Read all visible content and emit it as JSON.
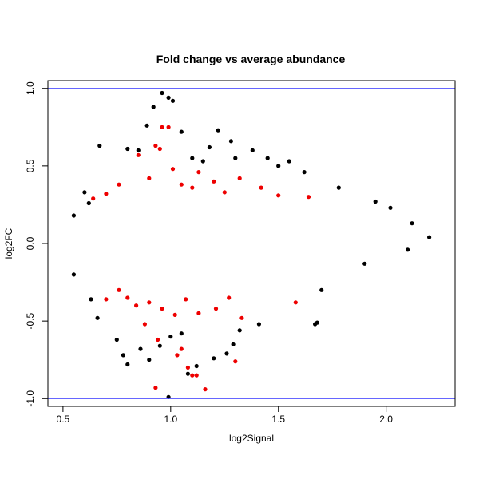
{
  "chart_data": {
    "type": "scatter",
    "title": "Fold change vs average abundance",
    "xlabel": "log2Signal",
    "ylabel": "log2FC",
    "xlim": [
      0.43,
      2.32
    ],
    "ylim": [
      -1.05,
      1.05
    ],
    "x_ticks": [
      0.5,
      1.0,
      1.5,
      2.0
    ],
    "x_tick_labels": [
      "0.5",
      "1.0",
      "1.5",
      "2.0"
    ],
    "y_ticks": [
      -1.0,
      -0.5,
      0.0,
      0.5,
      1.0
    ],
    "y_tick_labels": [
      "-1.0",
      "-0.5",
      "0.0",
      "0.5",
      "1.0"
    ],
    "grid": false,
    "reference_lines": [
      {
        "axis": "y",
        "value": 1.0,
        "color": "#3333ff"
      },
      {
        "axis": "y",
        "value": -1.0,
        "color": "#3333ff"
      }
    ],
    "series": [
      {
        "color": "#000000",
        "points": [
          [
            0.96,
            0.97
          ],
          [
            0.99,
            0.94
          ],
          [
            1.01,
            0.92
          ],
          [
            0.92,
            0.88
          ],
          [
            0.89,
            0.76
          ],
          [
            0.67,
            0.63
          ],
          [
            1.05,
            0.72
          ],
          [
            1.22,
            0.73
          ],
          [
            1.28,
            0.66
          ],
          [
            1.38,
            0.6
          ],
          [
            1.45,
            0.55
          ],
          [
            0.85,
            0.6
          ],
          [
            0.8,
            0.61
          ],
          [
            1.62,
            0.46
          ],
          [
            1.78,
            0.36
          ],
          [
            1.95,
            0.27
          ],
          [
            2.02,
            0.23
          ],
          [
            2.12,
            0.13
          ],
          [
            2.2,
            0.04
          ],
          [
            0.6,
            0.33
          ],
          [
            0.55,
            0.18
          ],
          [
            0.62,
            0.26
          ],
          [
            1.1,
            0.55
          ],
          [
            1.15,
            0.53
          ],
          [
            1.5,
            0.5
          ],
          [
            1.55,
            0.53
          ],
          [
            1.3,
            0.55
          ],
          [
            1.18,
            0.62
          ],
          [
            0.75,
            -0.62
          ],
          [
            0.78,
            -0.72
          ],
          [
            0.8,
            -0.78
          ],
          [
            0.86,
            -0.68
          ],
          [
            0.9,
            -0.75
          ],
          [
            0.99,
            -0.99
          ],
          [
            1.08,
            -0.84
          ],
          [
            1.12,
            -0.79
          ],
          [
            1.2,
            -0.74
          ],
          [
            1.26,
            -0.71
          ],
          [
            1.29,
            -0.65
          ],
          [
            1.32,
            -0.56
          ],
          [
            1.41,
            -0.52
          ],
          [
            1.68,
            -0.51
          ],
          [
            1.67,
            -0.52
          ],
          [
            0.66,
            -0.48
          ],
          [
            0.63,
            -0.36
          ],
          [
            0.55,
            -0.2
          ],
          [
            1.7,
            -0.3
          ],
          [
            1.9,
            -0.13
          ],
          [
            2.1,
            -0.04
          ],
          [
            1.0,
            -0.6
          ],
          [
            0.95,
            -0.66
          ],
          [
            1.05,
            -0.58
          ]
        ]
      },
      {
        "color": "#ee0000",
        "points": [
          [
            0.96,
            0.75
          ],
          [
            0.99,
            0.75
          ],
          [
            0.93,
            0.63
          ],
          [
            0.95,
            0.61
          ],
          [
            0.85,
            0.57
          ],
          [
            1.01,
            0.48
          ],
          [
            0.7,
            0.32
          ],
          [
            0.76,
            0.38
          ],
          [
            0.9,
            0.42
          ],
          [
            1.05,
            0.38
          ],
          [
            1.1,
            0.36
          ],
          [
            1.2,
            0.4
          ],
          [
            1.32,
            0.42
          ],
          [
            1.42,
            0.36
          ],
          [
            1.5,
            0.31
          ],
          [
            1.64,
            0.3
          ],
          [
            0.64,
            0.29
          ],
          [
            1.13,
            0.46
          ],
          [
            1.25,
            0.33
          ],
          [
            0.8,
            -0.35
          ],
          [
            0.84,
            -0.4
          ],
          [
            0.9,
            -0.38
          ],
          [
            0.96,
            -0.42
          ],
          [
            1.02,
            -0.46
          ],
          [
            1.07,
            -0.36
          ],
          [
            1.13,
            -0.45
          ],
          [
            1.21,
            -0.42
          ],
          [
            1.27,
            -0.35
          ],
          [
            1.33,
            -0.48
          ],
          [
            1.58,
            -0.38
          ],
          [
            0.88,
            -0.52
          ],
          [
            0.94,
            -0.62
          ],
          [
            1.03,
            -0.72
          ],
          [
            1.08,
            -0.8
          ],
          [
            1.1,
            -0.85
          ],
          [
            1.12,
            -0.85
          ],
          [
            1.16,
            -0.94
          ],
          [
            1.3,
            -0.76
          ],
          [
            0.93,
            -0.93
          ],
          [
            1.05,
            -0.68
          ],
          [
            0.7,
            -0.36
          ],
          [
            0.76,
            -0.3
          ]
        ]
      }
    ]
  }
}
